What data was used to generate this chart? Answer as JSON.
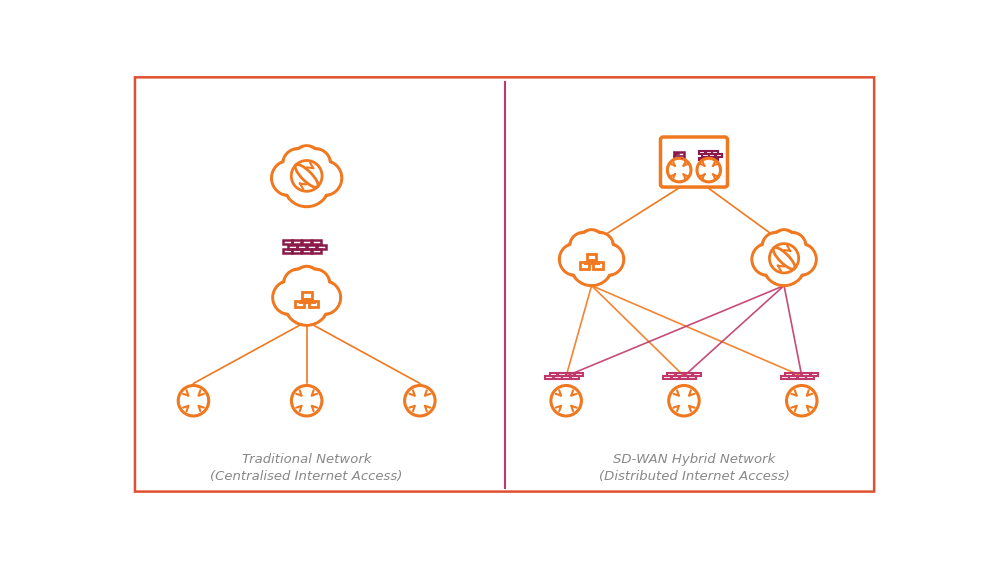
{
  "orange": "#F07820",
  "purple": "#8B1A4A",
  "light_purple": "#C0396A",
  "border_color": "#E05030",
  "divider_color": "#C0396A",
  "text_color": "#888888",
  "background": "#FFFFFF",
  "left_title_line1": "Traditional Network",
  "left_title_line2": "(Centralised Internet Access)",
  "right_title_line1": "SD-WAN Hybrid Network",
  "right_title_line2": "(Distributed Internet Access)",
  "fig_width": 9.86,
  "fig_height": 5.61
}
